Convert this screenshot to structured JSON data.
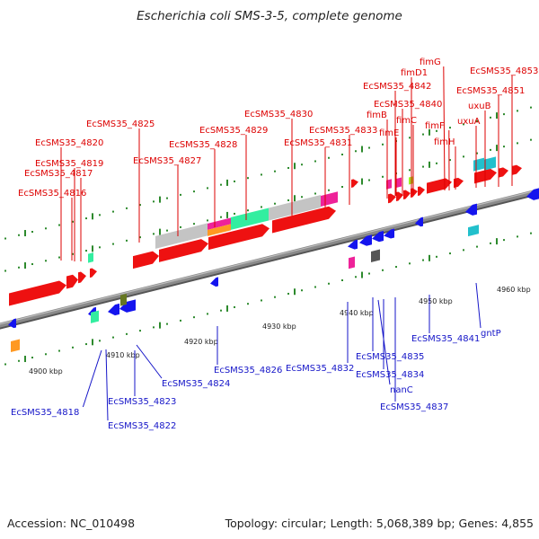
{
  "title": "Escherichia coli SMS-3-5, complete genome",
  "footer": {
    "accession": "Accession: NC_010498",
    "summary": "Topology: circular; Length: 5,068,389 bp; Genes: 4,855"
  },
  "colors": {
    "axis": "#8a8a8a",
    "tick": "#2d8a2d",
    "label_top": "#dd0000",
    "label_bottom": "#1515c8",
    "forward_gene": "#ee1111",
    "reverse_gene": "#1414ee",
    "grey_feature": "#c4c4c4",
    "aqua_feature": "#33eea0",
    "pink_feature": "#ee2299",
    "orange_feature": "#ff9922",
    "cyan_feature": "#22c0cc",
    "olive_feature": "#667722",
    "dark_feature": "#555555",
    "lime_feature": "#99ee22"
  },
  "kbp_labels": [
    "4900 kbp",
    "4910 kbp",
    "4920 kbp",
    "4930 kbp",
    "4940 kbp",
    "4950 kbp",
    "4960 kbp"
  ],
  "top_labels": [
    "EcSMS35_4825",
    "EcSMS35_4820",
    "EcSMS35_4819",
    "EcSMS35_4817",
    "EcSMS35_4816",
    "EcSMS35_4827",
    "EcSMS35_4828",
    "EcSMS35_4829",
    "EcSMS35_4830",
    "EcSMS35_4831",
    "EcSMS35_4833",
    "EcSMS35_4842",
    "EcSMS35_4840",
    "fimD1",
    "fimG",
    "fimB",
    "fimC",
    "fimE",
    "fimF",
    "fimH",
    "EcSMS35_4853",
    "EcSMS35_4851",
    "uxuB",
    "uxuA"
  ],
  "bottom_labels": [
    "EcSMS35_4818",
    "EcSMS35_4822",
    "EcSMS35_4823",
    "EcSMS35_4824",
    "EcSMS35_4826",
    "EcSMS35_4832",
    "EcSMS35_4835",
    "EcSMS35_4834",
    "nanC",
    "EcSMS35_4837",
    "EcSMS35_4841",
    "gntP"
  ]
}
